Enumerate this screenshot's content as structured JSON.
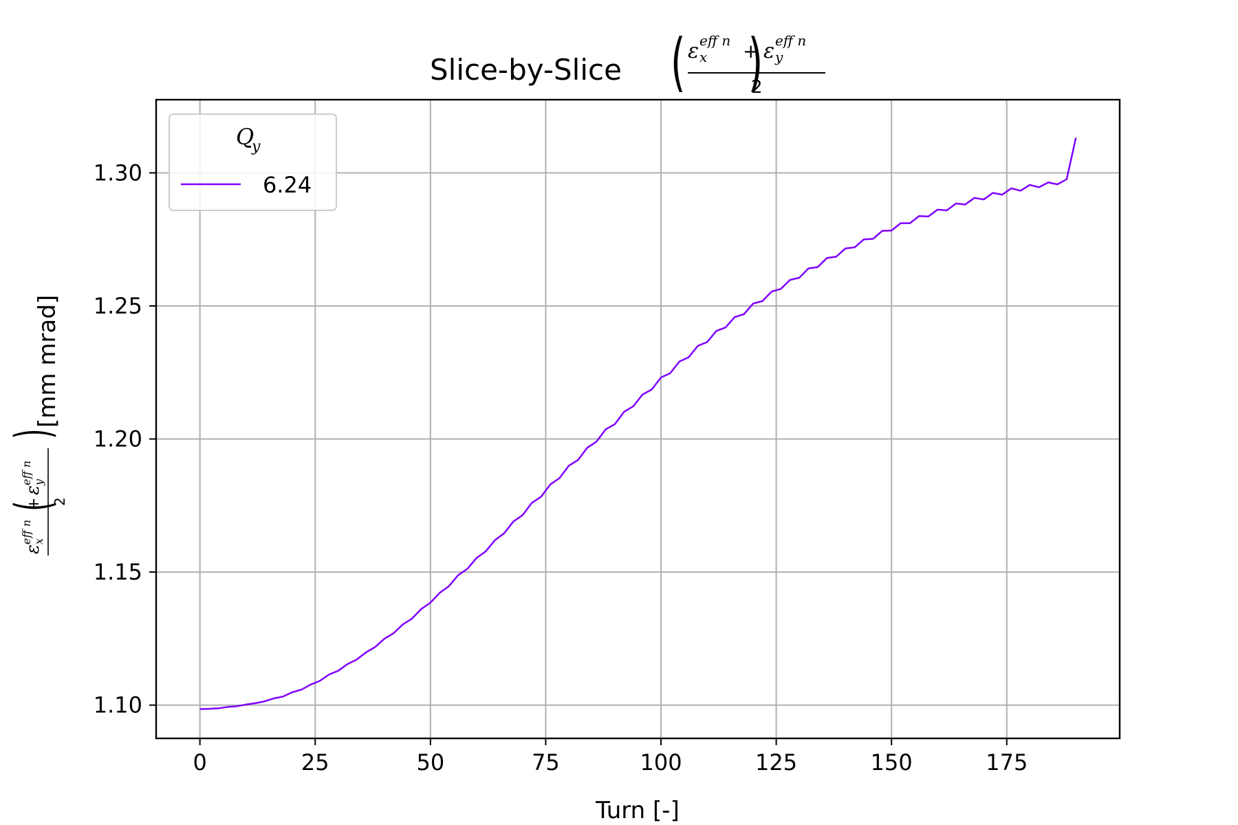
{
  "chart_data": {
    "type": "line",
    "title": "Slice-by-Slice",
    "title_math": {
      "numerator_left": "ε",
      "numerator_left_sup": "eff n",
      "numerator_left_sub": "x",
      "plus": "+",
      "numerator_right": "ε",
      "numerator_right_sup": "eff n",
      "numerator_right_sub": "y",
      "denominator": "2"
    },
    "xlabel": "Turn [-]",
    "ylabel_unit": "[mm mrad]",
    "xlim": [
      -9.5,
      199.5
    ],
    "ylim": [
      1.0875,
      1.3275
    ],
    "xticks": [
      0,
      25,
      50,
      75,
      100,
      125,
      150,
      175
    ],
    "xtick_labels": [
      "0",
      "25",
      "50",
      "75",
      "100",
      "125",
      "150",
      "175"
    ],
    "yticks": [
      1.1,
      1.15,
      1.2,
      1.25,
      1.3
    ],
    "ytick_labels": [
      "1.10",
      "1.15",
      "1.20",
      "1.25",
      "1.30"
    ],
    "grid": true,
    "legend": {
      "title": "Q",
      "title_sub": "y",
      "placement": "upper-left"
    },
    "series": [
      {
        "name": "6.24",
        "color": "#8000ff",
        "x": [
          0,
          2,
          4,
          6,
          8,
          10,
          12,
          14,
          16,
          18,
          20,
          22,
          24,
          26,
          28,
          30,
          32,
          34,
          36,
          38,
          40,
          42,
          44,
          46,
          48,
          50,
          52,
          54,
          56,
          58,
          60,
          62,
          64,
          66,
          68,
          70,
          72,
          74,
          76,
          78,
          80,
          82,
          84,
          86,
          88,
          90,
          92,
          94,
          96,
          98,
          100,
          102,
          104,
          106,
          108,
          110,
          112,
          114,
          116,
          118,
          120,
          122,
          124,
          126,
          128,
          130,
          132,
          134,
          136,
          138,
          140,
          142,
          144,
          146,
          148,
          150,
          152,
          154,
          156,
          158,
          160,
          162,
          164,
          166,
          168,
          170,
          172,
          174,
          176,
          178,
          180,
          182,
          184,
          186,
          188,
          190
        ],
        "y": [
          1.0985,
          1.0986,
          1.0988,
          1.0993,
          1.0996,
          1.1002,
          1.1007,
          1.1014,
          1.1025,
          1.1032,
          1.1048,
          1.1058,
          1.1077,
          1.1091,
          1.1115,
          1.1129,
          1.1154,
          1.1171,
          1.1198,
          1.1218,
          1.1249,
          1.127,
          1.1303,
          1.1325,
          1.1361,
          1.1385,
          1.1422,
          1.1447,
          1.1488,
          1.1512,
          1.1553,
          1.1578,
          1.162,
          1.1646,
          1.169,
          1.1714,
          1.176,
          1.1783,
          1.1829,
          1.1853,
          1.1899,
          1.1921,
          1.1967,
          1.199,
          1.2036,
          1.2056,
          1.2102,
          1.2123,
          1.2167,
          1.2186,
          1.2231,
          1.2247,
          1.2291,
          1.2307,
          1.235,
          1.2364,
          1.2406,
          1.2419,
          1.2458,
          1.2469,
          1.2509,
          1.2518,
          1.2554,
          1.2564,
          1.2598,
          1.2606,
          1.2641,
          1.2646,
          1.268,
          1.2685,
          1.2716,
          1.272,
          1.275,
          1.2752,
          1.2782,
          1.2783,
          1.2811,
          1.2811,
          1.2838,
          1.2836,
          1.2862,
          1.2859,
          1.2885,
          1.2881,
          1.2906,
          1.29,
          1.2925,
          1.2918,
          1.2942,
          1.2933,
          1.2955,
          1.2946,
          1.2964,
          1.2957,
          1.2976,
          1.3132
        ]
      }
    ]
  }
}
